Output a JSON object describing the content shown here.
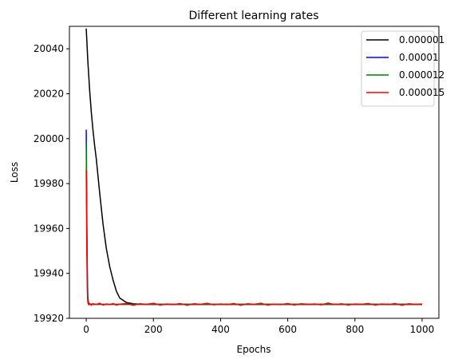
{
  "chart_data": {
    "type": "line",
    "title": "Different learning rates",
    "xlabel": "Epochs",
    "ylabel": "Loss",
    "xlim": [
      -50,
      1050
    ],
    "ylim": [
      19920,
      20050
    ],
    "xticks": [
      0,
      200,
      400,
      600,
      800,
      1000
    ],
    "yticks": [
      19920,
      19940,
      19960,
      19980,
      20000,
      20020,
      20040
    ],
    "grid": false,
    "legend_position": "top-right",
    "series": [
      {
        "name": "0.000001",
        "color": "#000000",
        "x": [
          0,
          2,
          5,
          8,
          10,
          15,
          20,
          25,
          30,
          40,
          50,
          60,
          70,
          80,
          90,
          100,
          120,
          140,
          160,
          200,
          300,
          400,
          500,
          600,
          700,
          800,
          900,
          1000
        ],
        "y": [
          20049,
          20043,
          20034,
          20027,
          20022,
          20012,
          20004,
          19997,
          19991,
          19976,
          19962,
          19951,
          19943,
          19937,
          19932,
          19929,
          19927,
          19926.5,
          19926.3,
          19926.2,
          19926.2,
          19926.2,
          19926.2,
          19926.2,
          19926.2,
          19926.2,
          19926.2,
          19926.2
        ]
      },
      {
        "name": "0.00001",
        "color": "#0000ff",
        "x": [
          0,
          1,
          2,
          3,
          4,
          5,
          7,
          10,
          15,
          20,
          50,
          100,
          200,
          400,
          600,
          800,
          1000
        ],
        "y": [
          20004,
          19984,
          19962,
          19945,
          19935,
          19929,
          19927,
          19926.4,
          19926.3,
          19926.2,
          19926.2,
          19926.2,
          19926.2,
          19926.2,
          19926.2,
          19926.2,
          19926.2
        ]
      },
      {
        "name": "0.000012",
        "color": "#008000",
        "x": [
          0,
          1,
          2,
          3,
          4,
          5,
          7,
          10,
          15,
          20,
          50,
          100,
          200,
          400,
          600,
          800,
          1000
        ],
        "y": [
          19998,
          19977,
          19956,
          19940,
          19932,
          19928,
          19926.8,
          19926.4,
          19926.3,
          19926.2,
          19926.2,
          19926.2,
          19926.2,
          19926.2,
          19926.2,
          19926.2,
          19926.2
        ]
      },
      {
        "name": "0.000015",
        "color": "#ff0000",
        "x": [
          0,
          1,
          2,
          3,
          4,
          5,
          6,
          8,
          10,
          15,
          20,
          30,
          40,
          50,
          60,
          70,
          80,
          90,
          100,
          120,
          140,
          160,
          180,
          200,
          220,
          240,
          260,
          280,
          300,
          320,
          340,
          360,
          380,
          400,
          420,
          440,
          460,
          480,
          500,
          520,
          540,
          560,
          580,
          600,
          620,
          640,
          660,
          680,
          700,
          720,
          740,
          760,
          780,
          800,
          820,
          840,
          860,
          880,
          900,
          920,
          940,
          960,
          980,
          1000
        ],
        "y": [
          19986,
          19966,
          19947,
          19935,
          19929,
          19927,
          19926.5,
          19926,
          19926.6,
          19925.8,
          19926.5,
          19926.2,
          19926.7,
          19925.9,
          19926.4,
          19926.1,
          19926.6,
          19925.9,
          19926.3,
          19926.6,
          19925.8,
          19926.5,
          19926.2,
          19926.7,
          19925.9,
          19926.4,
          19926.1,
          19926.6,
          19925.8,
          19926.5,
          19926.2,
          19926.7,
          19926,
          19926.4,
          19926.1,
          19926.6,
          19925.8,
          19926.5,
          19926.2,
          19926.7,
          19925.9,
          19926.3,
          19926.1,
          19926.6,
          19925.9,
          19926.5,
          19926.2,
          19926.4,
          19926,
          19926.8,
          19926.1,
          19926.5,
          19925.9,
          19926.4,
          19926.2,
          19926.6,
          19925.9,
          19926.4,
          19926.1,
          19926.6,
          19925.8,
          19926.5,
          19926.2,
          19926.4
        ]
      }
    ]
  }
}
